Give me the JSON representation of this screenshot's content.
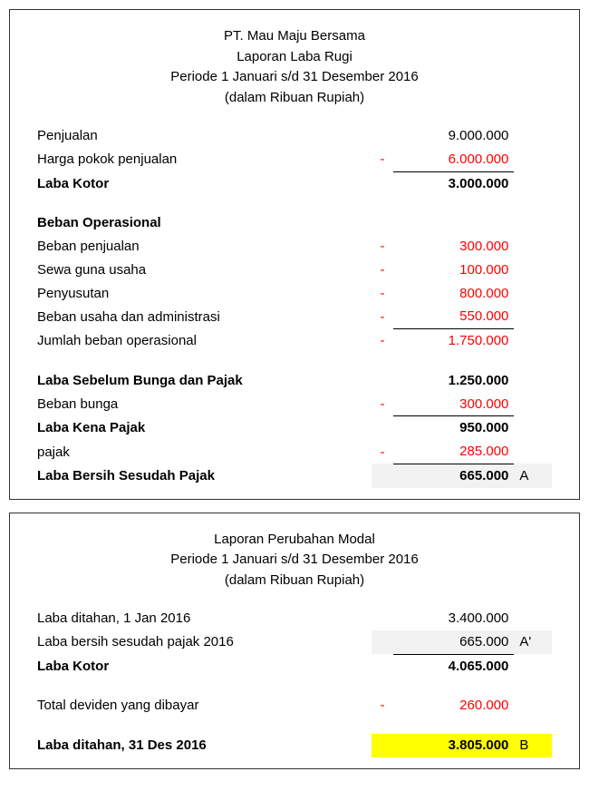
{
  "colors": {
    "negative": "#ff0000",
    "shade": "#f2f2f2",
    "highlight": "#ffff00",
    "border": "#333333",
    "text": "#000000"
  },
  "income": {
    "header": {
      "company": "PT. Mau Maju Bersama",
      "title": "Laporan Laba Rugi",
      "period": "Periode 1 Januari s/d 31 Desember 2016",
      "unit": "(dalam Ribuan Rupiah)"
    },
    "rows": {
      "sales_label": "Penjualan",
      "sales_value": "9.000.000",
      "cogs_label": "Harga pokok penjualan",
      "cogs_sign": "-",
      "cogs_value": "6.000.000",
      "gross_label": "Laba Kotor",
      "gross_value": "3.000.000",
      "opex_header": "Beban Operasional",
      "selling_label": "Beban penjualan",
      "selling_sign": "-",
      "selling_value": "300.000",
      "lease_label": "Sewa guna usaha",
      "lease_sign": "-",
      "lease_value": "100.000",
      "depr_label": "Penyusutan",
      "depr_sign": "-",
      "depr_value": "800.000",
      "admin_label": "Beban usaha dan administrasi",
      "admin_sign": "-",
      "admin_value": "550.000",
      "total_opex_label": "Jumlah beban operasional",
      "total_opex_sign": "-",
      "total_opex_value": "1.750.000",
      "ebit_label": "Laba Sebelum Bunga dan Pajak",
      "ebit_value": "1.250.000",
      "interest_label": "Beban bunga",
      "interest_sign": "-",
      "interest_value": "300.000",
      "taxable_label": "Laba Kena Pajak",
      "taxable_value": "950.000",
      "tax_label": "pajak",
      "tax_sign": "-",
      "tax_value": "285.000",
      "net_label": "Laba Bersih Sesudah Pajak",
      "net_value": "665.000",
      "net_note": "A"
    }
  },
  "equity": {
    "header": {
      "title": "Laporan Perubahan Modal",
      "period": "Periode 1 Januari s/d 31 Desember 2016",
      "unit": "(dalam Ribuan Rupiah)"
    },
    "rows": {
      "re_begin_label": "Laba ditahan, 1 Jan 2016",
      "re_begin_value": "3.400.000",
      "net_label": "Laba bersih sesudah pajak 2016",
      "net_value": "665.000",
      "net_note": "A'",
      "subtotal_label": "Laba Kotor",
      "subtotal_value": "4.065.000",
      "dividend_label": "Total deviden yang dibayar",
      "dividend_sign": "-",
      "dividend_value": "260.000",
      "re_end_label": "Laba ditahan, 31 Des 2016",
      "re_end_value": "3.805.000",
      "re_end_note": "B"
    }
  }
}
